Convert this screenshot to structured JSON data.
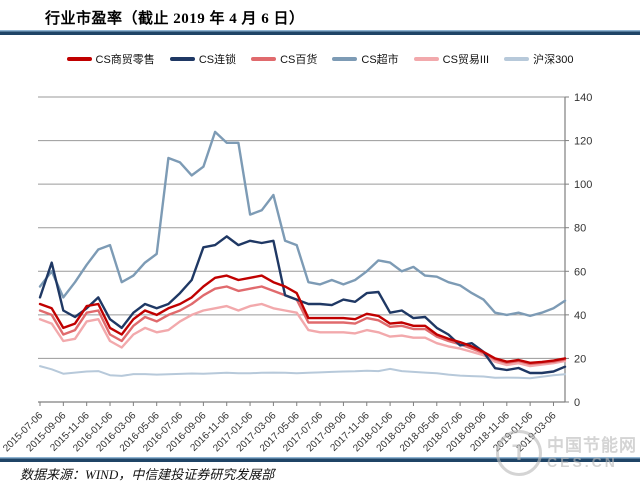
{
  "header": {
    "title": "行业市盈率（截止 2019 年 4 月 6 日）"
  },
  "footer": {
    "source": "数据来源：WIND，中信建投证券研究发展部"
  },
  "watermark": {
    "logo_glyph": "T",
    "name_cn": "中国节能网",
    "name_en": "CES.CN"
  },
  "colors": {
    "rule_dark": "#1F4466",
    "rule_light": "#8FB4D2",
    "grid": "#9a9a9a",
    "axis": "#7f7f7f",
    "tick_text": "#333333"
  },
  "chart_data": {
    "type": "line",
    "title": "行业市盈率（截止 2019 年 4 月 6 日）",
    "xlabel": "",
    "ylabel": "",
    "ylim": [
      0,
      140
    ],
    "y_tick_step": 20,
    "y_axis_side": "right",
    "grid": "horizontal",
    "legend_position": "top",
    "x_unit": "monthly samples from 2015-07 to 2019-04",
    "x_tick_every_months": 2,
    "x_tick_labels": [
      "2015-07-06",
      "2015-09-06",
      "2015-11-06",
      "2016-01-06",
      "2016-03-06",
      "2016-05-06",
      "2016-07-06",
      "2016-09-06",
      "2016-11-06",
      "2017-01-06",
      "2017-03-06",
      "2017-05-06",
      "2017-07-06",
      "2017-09-06",
      "2017-11-06",
      "2018-01-06",
      "2018-03-06",
      "2018-05-06",
      "2018-07-06",
      "2018-09-06",
      "2018-11-06",
      "2019-01-06",
      "2019-03-06"
    ],
    "draw_order": [
      5,
      3,
      4,
      2,
      1,
      0
    ],
    "series": [
      {
        "name": "CS商贸零售",
        "color": "#C00000",
        "width": 2.4,
        "values": [
          45,
          43,
          34,
          36,
          44,
          45,
          34,
          31,
          38,
          42,
          40,
          43,
          45,
          48,
          53,
          57,
          58,
          56,
          57,
          58,
          55,
          53,
          50,
          38.5,
          38.5,
          38.5,
          38.5,
          38,
          40.5,
          39.5,
          36,
          36.5,
          35,
          35,
          31,
          29,
          27.5,
          25.5,
          23,
          20,
          18.5,
          19.3,
          18,
          18.4,
          19,
          20
        ]
      },
      {
        "name": "CS连锁",
        "color": "#1F3864",
        "width": 2.4,
        "values": [
          48,
          64,
          42,
          39,
          43,
          48,
          38,
          34,
          41,
          45,
          43,
          45,
          50,
          56,
          71,
          72,
          76,
          72,
          74,
          73,
          74,
          49,
          47,
          45,
          45,
          44.5,
          47,
          46,
          50,
          50.5,
          41,
          42,
          38.5,
          39,
          34,
          31,
          26,
          27,
          23,
          15.5,
          14.7,
          15.6,
          13.3,
          13.3,
          14,
          16.2
        ]
      },
      {
        "name": "CS百货",
        "color": "#E06A6D",
        "width": 2.4,
        "values": [
          42,
          40,
          31,
          33,
          41,
          42,
          31,
          28,
          35,
          39,
          37,
          40,
          42,
          45,
          49,
          52,
          53,
          51,
          52,
          53,
          51,
          49,
          47,
          36.5,
          36.5,
          36.5,
          36.5,
          36,
          38.5,
          37.5,
          34.5,
          35,
          33.5,
          33.5,
          30,
          28,
          26.5,
          24.5,
          22.5,
          19.5,
          18,
          18.8,
          17.5,
          18,
          18.5,
          19.5
        ]
      },
      {
        "name": "CS超市",
        "color": "#7D9BB5",
        "width": 2.4,
        "values": [
          53,
          60,
          48,
          55,
          63,
          70,
          72,
          55,
          58,
          64,
          68,
          112,
          110,
          104,
          108,
          124,
          119,
          119,
          86,
          88,
          95,
          74,
          72,
          55,
          54,
          56,
          54,
          56,
          60,
          65,
          64,
          60,
          62,
          58,
          57.5,
          55,
          53.5,
          50,
          47,
          41,
          40,
          41,
          39.5,
          41,
          43,
          46.5
        ]
      },
      {
        "name": "CS贸易III",
        "color": "#F2A9AC",
        "width": 2.4,
        "values": [
          38,
          36,
          28,
          29,
          37,
          38,
          28,
          25,
          31,
          34,
          32,
          33,
          37,
          40,
          42,
          43,
          44,
          42,
          44,
          45,
          43,
          42,
          41,
          33,
          32,
          32,
          32,
          31.5,
          33,
          32,
          30,
          30.5,
          29.5,
          29.5,
          27,
          25.5,
          24.5,
          23,
          21.5,
          18.5,
          17,
          17.8,
          16.5,
          17.2,
          17.8,
          18.8
        ]
      },
      {
        "name": "沪深300",
        "color": "#B7C9DA",
        "width": 2.0,
        "values": [
          16.5,
          15,
          13,
          13.5,
          14,
          14.2,
          12.3,
          12,
          12.8,
          12.8,
          12.6,
          12.7,
          12.9,
          13.1,
          13,
          13.2,
          13.4,
          13.2,
          13.2,
          13.4,
          13.5,
          13.4,
          13.2,
          13.4,
          13.6,
          13.8,
          14,
          14.1,
          14.3,
          14.2,
          15.2,
          14.2,
          13.8,
          13.5,
          13.2,
          12.6,
          12.1,
          11.9,
          11.7,
          11.1,
          11.2,
          11.1,
          10.9,
          11.6,
          12.3,
          12.7
        ]
      }
    ]
  }
}
